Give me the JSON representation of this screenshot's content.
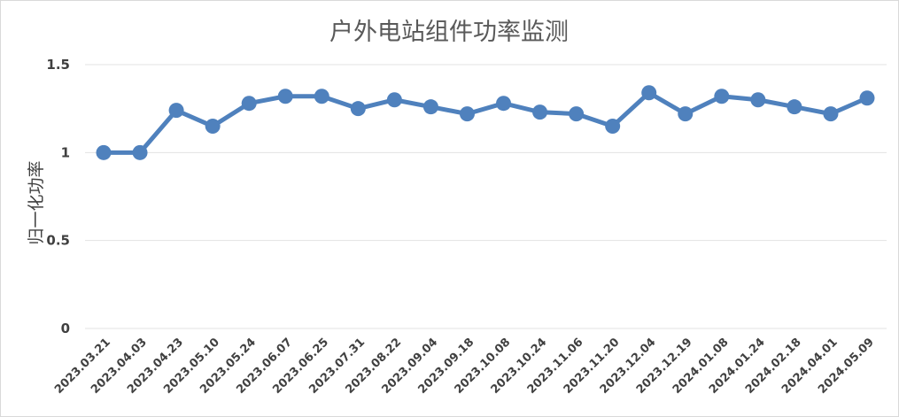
{
  "chart_data": {
    "type": "line",
    "title": "户外电站组件功率监测",
    "xlabel": "",
    "ylabel": "归一化功率",
    "ylim": [
      0,
      1.5
    ],
    "yticks": [
      "0",
      "0.5",
      "1",
      "1.5"
    ],
    "grid": true,
    "legend": "none",
    "categories": [
      "2023.03.21",
      "2023.04.03",
      "2023.04.23",
      "2023.05.10",
      "2023.05.24",
      "2023.06.07",
      "2023.06.25",
      "2023.07.31",
      "2023.08.22",
      "2023.09.04",
      "2023.09.18",
      "2023.10.08",
      "2023.10.24",
      "2023.11.06",
      "2023.11.20",
      "2023.12.04",
      "2023.12.19",
      "2024.01.08",
      "2024.01.24",
      "2024.02.18",
      "2024.04.01",
      "2024.05.09"
    ],
    "series": [
      {
        "values": [
          1.0,
          1.0,
          1.24,
          1.15,
          1.28,
          1.32,
          1.32,
          1.25,
          1.3,
          1.26,
          1.22,
          1.28,
          1.23,
          1.22,
          1.15,
          1.34,
          1.22,
          1.32,
          1.3,
          1.26,
          1.22,
          1.31
        ],
        "color": "#4f81bd"
      }
    ]
  }
}
